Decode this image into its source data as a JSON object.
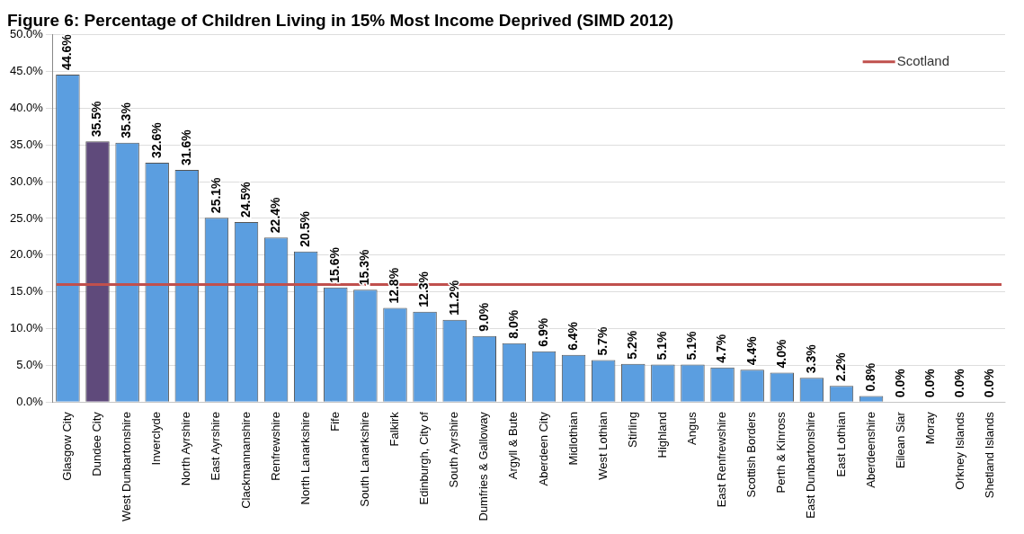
{
  "chart_data": {
    "type": "bar",
    "title": "Figure 6: Percentage of Children Living in 15% Most Income Deprived (SIMD 2012)",
    "categories": [
      "Glasgow City",
      "Dundee City",
      "West Dunbartonshire",
      "Inverclyde",
      "North Ayrshire",
      "East Ayrshire",
      "Clackmannanshire",
      "Renfrewshire",
      "North Lanarkshire",
      "Fife",
      "South Lanarkshire",
      "Falkirk",
      "Edinburgh, City of",
      "South Ayrshire",
      "Dumfries & Galloway",
      "Argyll & Bute",
      "Aberdeen City",
      "Midlothian",
      "West Lothian",
      "Stirling",
      "Highland",
      "Angus",
      "East Renfrewshire",
      "Scottish Borders",
      "Perth & Kinross",
      "East Dunbartonshire",
      "East Lothian",
      "Aberdeenshire",
      "Eilean Siar",
      "Moray",
      "Orkney Islands",
      "Shetland Islands"
    ],
    "values": [
      44.6,
      35.5,
      35.3,
      32.6,
      31.6,
      25.1,
      24.5,
      22.4,
      20.5,
      15.6,
      15.3,
      12.8,
      12.3,
      11.2,
      9.0,
      8.0,
      6.9,
      6.4,
      5.7,
      5.2,
      5.1,
      5.1,
      4.7,
      4.4,
      4.0,
      3.3,
      2.2,
      0.8,
      0.0,
      0.0,
      0.0,
      0.0
    ],
    "value_labels": [
      "44.6%",
      "35.5%",
      "35.3%",
      "32.6%",
      "31.6%",
      "25.1%",
      "24.5%",
      "22.4%",
      "20.5%",
      "15.6%",
      "15.3%",
      "12.8%",
      "12.3%",
      "11.2%",
      "9.0%",
      "8.0%",
      "6.9%",
      "6.4%",
      "5.7%",
      "5.2%",
      "5.1%",
      "5.1%",
      "4.7%",
      "4.4%",
      "4.0%",
      "3.3%",
      "2.2%",
      "0.8%",
      "0.0%",
      "0.0%",
      "0.0%",
      "0.0%"
    ],
    "colors": [
      "#5b9ee0",
      "#5f4a7b",
      "#5b9ee0",
      "#5b9ee0",
      "#5b9ee0",
      "#5b9ee0",
      "#5b9ee0",
      "#5b9ee0",
      "#5b9ee0",
      "#5b9ee0",
      "#5b9ee0",
      "#5b9ee0",
      "#5b9ee0",
      "#5b9ee0",
      "#5b9ee0",
      "#5b9ee0",
      "#5b9ee0",
      "#5b9ee0",
      "#5b9ee0",
      "#5b9ee0",
      "#5b9ee0",
      "#5b9ee0",
      "#5b9ee0",
      "#5b9ee0",
      "#5b9ee0",
      "#5b9ee0",
      "#5b9ee0",
      "#5b9ee0",
      "#5b9ee0",
      "#5b9ee0",
      "#5b9ee0",
      "#5b9ee0"
    ],
    "ylim": [
      0,
      50
    ],
    "yticks": [
      {
        "value": 0,
        "label": "0.0%"
      },
      {
        "value": 5,
        "label": "5.0%"
      },
      {
        "value": 10,
        "label": "10.0%"
      },
      {
        "value": 15,
        "label": "15.0%"
      },
      {
        "value": 20,
        "label": "20.0%"
      },
      {
        "value": 25,
        "label": "25.0%"
      },
      {
        "value": 30,
        "label": "30.0%"
      },
      {
        "value": 35,
        "label": "35.0%"
      },
      {
        "value": 40,
        "label": "40.0%"
      },
      {
        "value": 45,
        "label": "45.0%"
      },
      {
        "value": 50,
        "label": "50.0%"
      }
    ],
    "ref_lines": [
      {
        "axis": "y",
        "value": 16.0,
        "label": "Scotland",
        "color": "#c0504d"
      }
    ],
    "grid": "y",
    "legend": "top right"
  }
}
